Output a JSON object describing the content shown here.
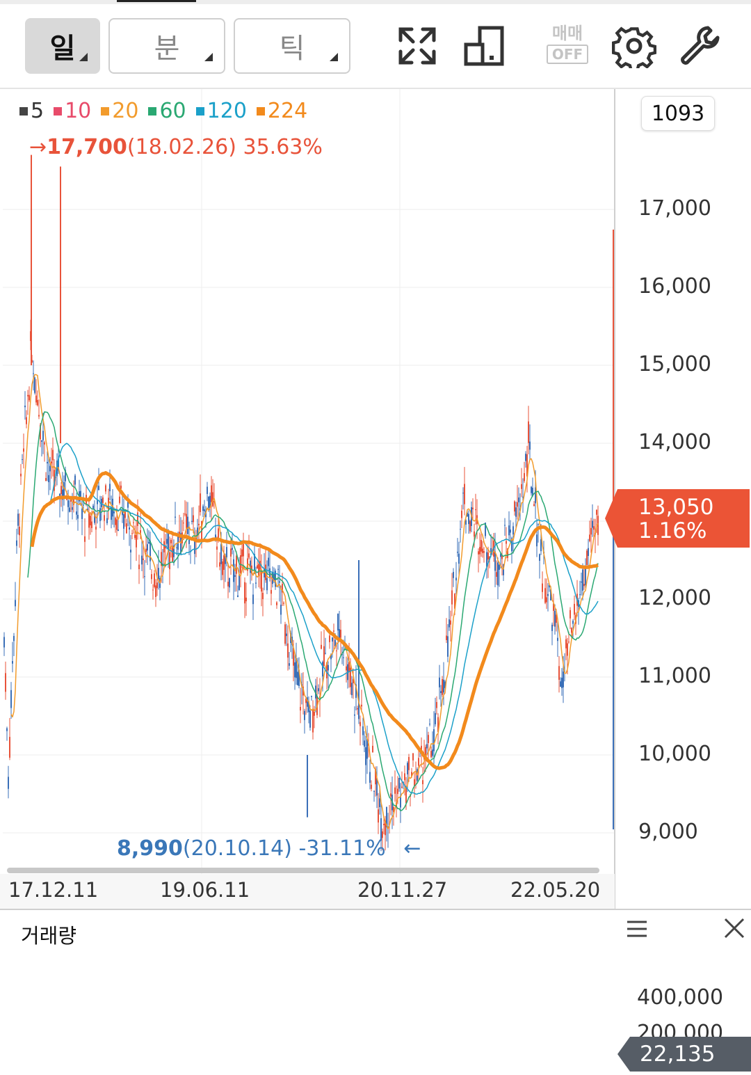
{
  "toolbar": {
    "period_buttons": [
      {
        "label": "일",
        "selected": true
      },
      {
        "label": "분",
        "selected": false
      },
      {
        "label": "틱",
        "selected": false
      }
    ],
    "icons": [
      "expand-icon",
      "layout-toggle-icon",
      "trade-off-icon",
      "settings-gear-icon",
      "wrench-icon"
    ],
    "trade_label_top": "매매",
    "trade_label_bottom": "OFF"
  },
  "legend": [
    {
      "label": "5",
      "color": "#444444"
    },
    {
      "label": "10",
      "color": "#e84b6a"
    },
    {
      "label": "20",
      "color": "#f29b2c"
    },
    {
      "label": "60",
      "color": "#2aa872"
    },
    {
      "label": "120",
      "color": "#1ba0c9"
    },
    {
      "label": "224",
      "color": "#f28a1c"
    }
  ],
  "count_badge": "1093",
  "chart_data": [
    {
      "type": "candlestick",
      "price_ticks": [
        "17,000",
        "16,000",
        "15,000",
        "14,000",
        "13,000",
        "12,000",
        "11,000",
        "10,000",
        "9,000"
      ],
      "price_tick_values": [
        17000,
        16000,
        15000,
        14000,
        13000,
        12000,
        11000,
        10000,
        9000
      ],
      "x_labels": [
        "17.12.11",
        "19.06.11",
        "20.11.27",
        "22.05.20"
      ],
      "ylim": [
        8500,
        18500
      ],
      "max_marker": {
        "arrow": "→",
        "value": "17,700",
        "date": "(18.02.26)",
        "pct": "35.63%"
      },
      "min_marker": {
        "arrow": "←",
        "value": "8,990",
        "date": "(20.10.14)",
        "pct": "-31.11%"
      },
      "current": {
        "price": "13,050",
        "change": "1.16%"
      },
      "up_color": "#e8533a",
      "down_color": "#3a6fb8"
    },
    {
      "type": "bar",
      "title": "거래량",
      "ticks": [
        "400,000",
        "200,000"
      ],
      "tick_values": [
        400000,
        200000
      ],
      "current_volume": "22,135"
    }
  ]
}
